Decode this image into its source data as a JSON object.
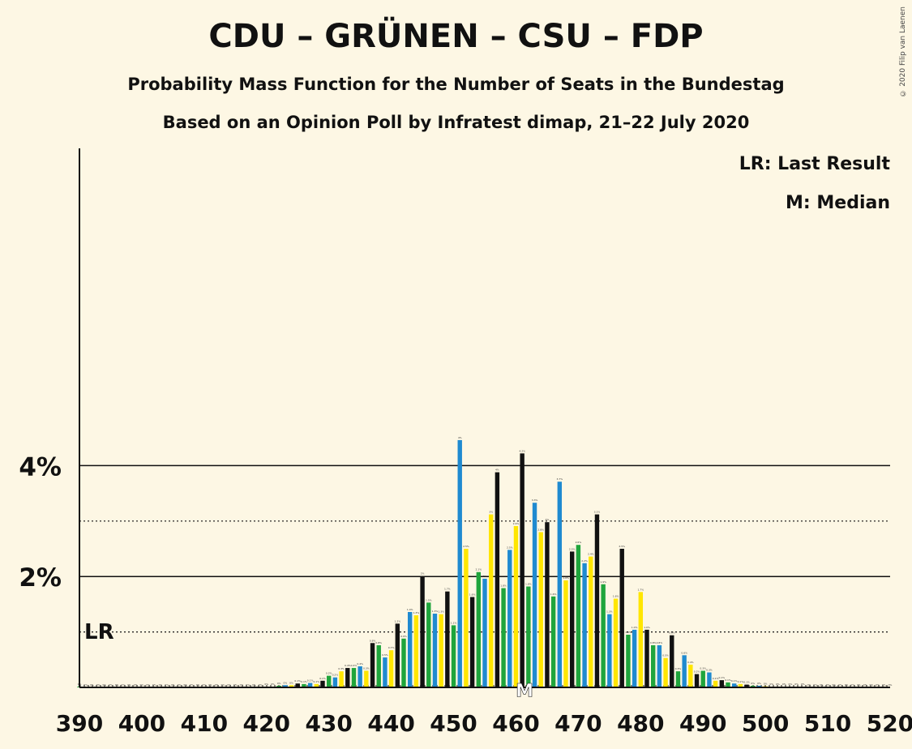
{
  "title": "CDU – GRÜNEN – CSU – FDP",
  "subtitle": "Probability Mass Function for the Number of Seats in the Bundestag",
  "subtitle2": "Based on an Opinion Poll by Infratest dimap, 21–22 July 2020",
  "copyright": "© 2020 Filip van Laenen",
  "legend": {
    "lr": "LR: Last Result",
    "median": "M: Median",
    "lr_marker": "LR",
    "median_marker": "M"
  },
  "colors": {
    "background": "#fdf7e4",
    "green": "#1fa53c",
    "blue": "#1f8ad0",
    "yellow": "#ffe600",
    "black": "#111111"
  },
  "chart_data": {
    "type": "bar",
    "xlabel": "",
    "ylabel": "",
    "xlim": [
      390,
      520
    ],
    "ylim": [
      0,
      4.8
    ],
    "x_ticks": [
      "390",
      "400",
      "410",
      "420",
      "430",
      "440",
      "450",
      "460",
      "470",
      "480",
      "490",
      "500",
      "510",
      "520"
    ],
    "y_ticks": [
      {
        "value": 2,
        "label": "2%"
      },
      {
        "value": 4,
        "label": "4%"
      }
    ],
    "gridlines_solid": [
      2,
      4
    ],
    "gridlines_dotted": [
      1,
      3
    ],
    "last_result_seats": 390,
    "median_seats": 461,
    "color_cycle": [
      "green",
      "blue",
      "yellow",
      "black"
    ],
    "seats": [
      390,
      391,
      392,
      393,
      394,
      395,
      396,
      397,
      398,
      399,
      400,
      401,
      402,
      403,
      404,
      405,
      406,
      407,
      408,
      409,
      410,
      411,
      412,
      413,
      414,
      415,
      416,
      417,
      418,
      419,
      420,
      421,
      422,
      423,
      424,
      425,
      426,
      427,
      428,
      429,
      430,
      431,
      432,
      433,
      434,
      435,
      436,
      437,
      438,
      439,
      440,
      441,
      442,
      443,
      444,
      445,
      446,
      447,
      448,
      449,
      450,
      451,
      452,
      453,
      454,
      455,
      456,
      457,
      458,
      459,
      460,
      461,
      462,
      463,
      464,
      465,
      466,
      467,
      468,
      469,
      470,
      471,
      472,
      473,
      474,
      475,
      476,
      477,
      478,
      479,
      480,
      481,
      482,
      483,
      484,
      485,
      486,
      487,
      488,
      489,
      490,
      491,
      492,
      493,
      494,
      495,
      496,
      497,
      498,
      499,
      500,
      501,
      502,
      503,
      504,
      505,
      506,
      507,
      508,
      509,
      510,
      511,
      512,
      513,
      514,
      515,
      516,
      517,
      518,
      519,
      520
    ],
    "probability_percent": [
      0.01,
      0.0,
      0.0,
      0.0,
      0.0,
      0.0,
      0.0,
      0.0,
      0.0,
      0.0,
      0.0,
      0.0,
      0.0,
      0.0,
      0.0,
      0.0,
      0.0,
      0.0,
      0.0,
      0.0,
      0.0,
      0.0,
      0.0,
      0.0,
      0.0,
      0.0,
      0.0,
      0.0,
      0.0,
      0.0,
      0.01,
      0.01,
      0.03,
      0.04,
      0.04,
      0.07,
      0.06,
      0.08,
      0.06,
      0.12,
      0.21,
      0.18,
      0.29,
      0.35,
      0.35,
      0.38,
      0.3,
      0.8,
      0.76,
      0.54,
      0.67,
      1.15,
      0.88,
      1.36,
      1.3,
      2.01,
      1.53,
      1.33,
      1.32,
      1.73,
      1.12,
      4.46,
      2.5,
      1.63,
      2.08,
      1.96,
      3.12,
      3.88,
      1.79,
      2.48,
      2.91,
      4.22,
      1.82,
      3.33,
      2.8,
      2.98,
      1.64,
      3.71,
      1.93,
      2.45,
      2.57,
      2.24,
      2.36,
      3.12,
      1.86,
      1.32,
      1.6,
      2.5,
      0.95,
      1.04,
      1.72,
      1.04,
      0.76,
      0.76,
      0.53,
      0.94,
      0.29,
      0.58,
      0.41,
      0.24,
      0.3,
      0.27,
      0.12,
      0.13,
      0.09,
      0.07,
      0.06,
      0.05,
      0.03,
      0.03,
      0.02,
      0.01,
      0.01,
      0.01,
      0.01,
      0.01,
      0.01,
      0.0,
      0.0,
      0.0,
      0.0,
      0.0,
      0.0,
      0.0,
      0.0,
      0.0,
      0.0,
      0.0,
      0.0,
      0.0,
      0.0
    ],
    "data_labels": [
      "0%",
      "0%",
      "0%",
      "0%",
      "0%",
      "0%",
      "0%",
      "0%",
      "0%",
      "0%",
      "0%",
      "0%",
      "0%",
      "0%",
      "0%",
      "0%",
      "0%",
      "0%",
      "0%",
      "0%",
      "0%",
      "0%",
      "0%",
      "0%",
      "0%",
      "0%",
      "0%",
      "0%",
      "0%",
      "0%",
      "0%",
      "0%",
      "0%",
      "0%",
      "0%",
      "0.1%",
      "0.1%",
      "0.1%",
      "0.1%",
      "0.1%",
      "0.2%",
      "0.2%",
      "0.3%",
      "0.4%",
      "0.4%",
      "0.4%",
      "0.3%",
      "0.8%",
      "0.8%",
      "0.5%",
      "0.7%",
      "1.2%",
      "0.9%",
      "1.4%",
      "1.3%",
      "2%",
      "1.5%",
      "1.3%",
      "1.3%",
      "1.7%",
      "1.1%",
      "4%",
      "2.5%",
      "1.6%",
      "2.1%",
      "2%",
      "3%",
      "4%",
      "1.8%",
      "2.5%",
      "2.9%",
      "4.2%",
      "1.8%",
      "3.3%",
      "2.8%",
      "3%",
      "1.6%",
      "3.7%",
      "1.9%",
      "2.5%",
      "2.6%",
      "2.2%",
      "2.4%",
      "3.1%",
      "1.9%",
      "1.3%",
      "1.6%",
      "2.5%",
      "1.0%",
      "1.0%",
      "1.7%",
      "1.0%",
      "0.8%",
      "0.8%",
      "0.5%",
      "0.9%",
      "0.3%",
      "0.6%",
      "0.4%",
      "0.2%",
      "0.3%",
      "0.3%",
      "0.1%",
      "0.1%",
      "0.1%",
      "0.1%",
      "0.1%",
      "0.1%",
      "0%",
      "0%",
      "0%",
      "0%",
      "0%",
      "0%",
      "0%",
      "0%",
      "0%",
      "0%",
      "0%",
      "0%",
      "0%",
      "0%",
      "0%",
      "0%",
      "0%",
      "0%",
      "0%",
      "0%",
      "0%",
      "0%",
      "0%"
    ]
  }
}
